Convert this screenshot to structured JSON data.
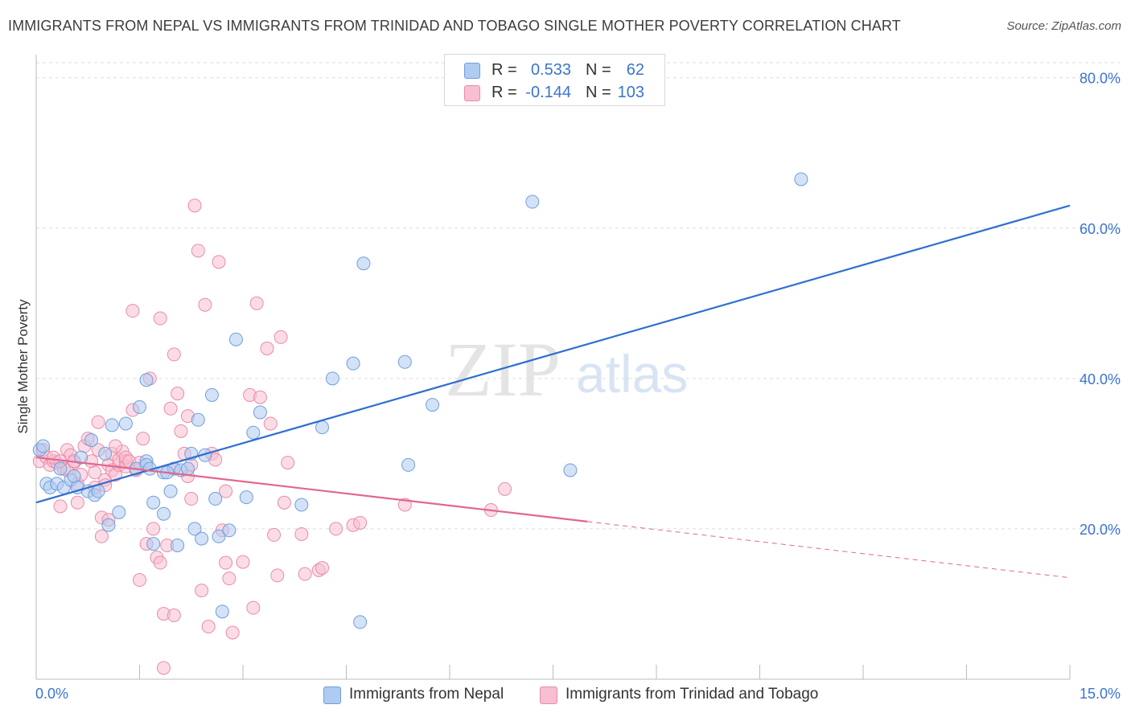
{
  "header": {
    "title": "IMMIGRANTS FROM NEPAL VS IMMIGRANTS FROM TRINIDAD AND TOBAGO SINGLE MOTHER POVERTY CORRELATION CHART",
    "source": "Source: ZipAtlas.com"
  },
  "watermark": {
    "zip": "ZIP",
    "atlas": "atlas"
  },
  "legend_top": {
    "rows": [
      {
        "r_label": "R =",
        "r_value": "0.533",
        "n_label": "N =",
        "n_value": "62"
      },
      {
        "r_label": "R =",
        "r_value": "-0.144",
        "n_label": "N =",
        "n_value": "103"
      }
    ]
  },
  "legend_bottom": {
    "items": [
      {
        "label": "Immigrants from Nepal"
      },
      {
        "label": "Immigrants from Trinidad and Tobago"
      }
    ]
  },
  "colors": {
    "nepal_fill": "#aecbf0",
    "nepal_stroke": "#6f9fdc",
    "nepal_line": "#2f6fd0",
    "tt_fill": "#f7bfd0",
    "tt_stroke": "#e98bab",
    "tt_line": "#e2668f",
    "tick_text": "#3a74d0",
    "grid": "#dddddd"
  },
  "chart_data": {
    "type": "scatter",
    "title": "IMMIGRANTS FROM NEPAL VS IMMIGRANTS FROM TRINIDAD AND TOBAGO SINGLE MOTHER POVERTY CORRELATION CHART",
    "xlabel": "",
    "ylabel": "Single Mother Poverty",
    "xlim": [
      0,
      15
    ],
    "ylim": [
      0,
      82
    ],
    "x_tick_labels": [
      "0.0%",
      "15.0%"
    ],
    "y_ticks": [
      20,
      40,
      60,
      80
    ],
    "y_tick_labels": [
      "20.0%",
      "40.0%",
      "60.0%",
      "80.0%"
    ],
    "grid": true,
    "legend_position": "top-center",
    "series": [
      {
        "name": "Immigrants from Nepal",
        "r": 0.533,
        "n": 62,
        "trend": {
          "x": [
            0,
            15
          ],
          "y": [
            23.5,
            63.0
          ],
          "dashed_from": null
        },
        "points": [
          [
            0.05,
            30.5
          ],
          [
            0.1,
            31.0
          ],
          [
            0.15,
            26.0
          ],
          [
            0.2,
            25.5
          ],
          [
            0.3,
            26.0
          ],
          [
            0.35,
            28.0
          ],
          [
            0.4,
            25.5
          ],
          [
            0.5,
            26.5
          ],
          [
            0.55,
            27.0
          ],
          [
            0.6,
            25.5
          ],
          [
            0.65,
            29.5
          ],
          [
            0.75,
            25.0
          ],
          [
            0.85,
            24.5
          ],
          [
            0.9,
            25.0
          ],
          [
            0.8,
            31.8
          ],
          [
            1.0,
            30.0
          ],
          [
            1.05,
            20.5
          ],
          [
            1.1,
            33.8
          ],
          [
            1.2,
            22.2
          ],
          [
            1.3,
            34.0
          ],
          [
            1.45,
            28.0
          ],
          [
            1.5,
            36.2
          ],
          [
            1.6,
            29.0
          ],
          [
            1.6,
            39.8
          ],
          [
            1.7,
            23.5
          ],
          [
            1.7,
            18.0
          ],
          [
            1.6,
            28.5
          ],
          [
            1.65,
            28.0
          ],
          [
            1.85,
            22.0
          ],
          [
            1.85,
            27.5
          ],
          [
            1.95,
            25.0
          ],
          [
            2.0,
            28.0
          ],
          [
            2.05,
            17.8
          ],
          [
            2.1,
            27.8
          ],
          [
            2.25,
            30.0
          ],
          [
            2.3,
            20.0
          ],
          [
            2.35,
            34.5
          ],
          [
            2.4,
            18.7
          ],
          [
            2.45,
            29.8
          ],
          [
            2.55,
            37.8
          ],
          [
            2.6,
            24.0
          ],
          [
            2.65,
            19.0
          ],
          [
            2.7,
            9.0
          ],
          [
            2.8,
            19.8
          ],
          [
            2.9,
            45.2
          ],
          [
            3.05,
            24.2
          ],
          [
            3.15,
            32.8
          ],
          [
            3.25,
            35.5
          ],
          [
            3.85,
            23.2
          ],
          [
            4.15,
            33.5
          ],
          [
            4.3,
            40.0
          ],
          [
            4.6,
            42.0
          ],
          [
            4.7,
            7.6
          ],
          [
            4.75,
            55.3
          ],
          [
            5.35,
            42.2
          ],
          [
            5.4,
            28.5
          ],
          [
            5.75,
            36.5
          ],
          [
            7.2,
            63.5
          ],
          [
            7.75,
            27.8
          ],
          [
            11.1,
            66.5
          ],
          [
            1.9,
            27.5
          ],
          [
            2.2,
            28.0
          ]
        ]
      },
      {
        "name": "Immigrants from Trinidad and Tobago",
        "r": -0.144,
        "n": 103,
        "trend": {
          "x": [
            0,
            15
          ],
          "y": [
            29.5,
            13.5
          ],
          "dashed_from": 8.0
        },
        "points": [
          [
            0.05,
            29.0
          ],
          [
            0.1,
            30.5
          ],
          [
            0.15,
            29.5
          ],
          [
            0.2,
            28.5
          ],
          [
            0.25,
            29.0
          ],
          [
            0.3,
            28.8
          ],
          [
            0.35,
            23.0
          ],
          [
            0.4,
            28.0
          ],
          [
            0.45,
            30.5
          ],
          [
            0.5,
            29.8
          ],
          [
            0.55,
            28.8
          ],
          [
            0.6,
            23.5
          ],
          [
            0.6,
            26.0
          ],
          [
            0.65,
            27.2
          ],
          [
            0.7,
            31.0
          ],
          [
            0.75,
            32.0
          ],
          [
            0.8,
            29.0
          ],
          [
            0.85,
            27.5
          ],
          [
            0.85,
            25.5
          ],
          [
            0.9,
            30.5
          ],
          [
            0.9,
            34.2
          ],
          [
            0.95,
            21.5
          ],
          [
            0.95,
            19.0
          ],
          [
            1.0,
            26.5
          ],
          [
            1.05,
            21.2
          ],
          [
            1.05,
            28.5
          ],
          [
            1.1,
            27.8
          ],
          [
            1.1,
            30.0
          ],
          [
            1.15,
            27.2
          ],
          [
            1.2,
            28.5
          ],
          [
            1.2,
            29.2
          ],
          [
            1.25,
            30.3
          ],
          [
            1.3,
            29.0
          ],
          [
            1.3,
            28.3
          ],
          [
            1.3,
            29.5
          ],
          [
            1.35,
            29.0
          ],
          [
            1.4,
            49.0
          ],
          [
            1.4,
            35.8
          ],
          [
            1.45,
            27.8
          ],
          [
            1.5,
            13.2
          ],
          [
            1.5,
            28.8
          ],
          [
            1.55,
            32.0
          ],
          [
            1.6,
            18.0
          ],
          [
            1.65,
            40.0
          ],
          [
            1.7,
            20.0
          ],
          [
            1.75,
            16.2
          ],
          [
            1.8,
            15.5
          ],
          [
            1.8,
            48.0
          ],
          [
            1.85,
            8.7
          ],
          [
            1.85,
            1.5
          ],
          [
            1.9,
            17.8
          ],
          [
            1.95,
            36.0
          ],
          [
            2.0,
            8.5
          ],
          [
            2.0,
            43.2
          ],
          [
            2.05,
            38.0
          ],
          [
            2.1,
            33.0
          ],
          [
            2.15,
            30.0
          ],
          [
            2.2,
            27.0
          ],
          [
            2.2,
            35.0
          ],
          [
            2.25,
            24.0
          ],
          [
            2.3,
            63.0
          ],
          [
            2.35,
            57.0
          ],
          [
            2.4,
            11.8
          ],
          [
            2.45,
            49.8
          ],
          [
            2.5,
            7.0
          ],
          [
            2.55,
            30.0
          ],
          [
            2.6,
            29.2
          ],
          [
            2.65,
            55.5
          ],
          [
            2.7,
            19.8
          ],
          [
            2.75,
            25.0
          ],
          [
            2.75,
            15.5
          ],
          [
            2.8,
            13.4
          ],
          [
            2.85,
            6.2
          ],
          [
            3.0,
            15.6
          ],
          [
            3.1,
            37.8
          ],
          [
            3.15,
            9.5
          ],
          [
            3.2,
            50.0
          ],
          [
            3.25,
            37.5
          ],
          [
            3.35,
            44.0
          ],
          [
            3.4,
            34.0
          ],
          [
            3.45,
            19.2
          ],
          [
            3.5,
            13.8
          ],
          [
            3.55,
            45.5
          ],
          [
            3.6,
            23.5
          ],
          [
            3.65,
            28.8
          ],
          [
            3.85,
            19.3
          ],
          [
            3.9,
            14.0
          ],
          [
            4.1,
            14.5
          ],
          [
            4.15,
            14.8
          ],
          [
            4.35,
            20.0
          ],
          [
            4.6,
            20.5
          ],
          [
            4.7,
            20.8
          ],
          [
            5.35,
            23.2
          ],
          [
            6.6,
            22.5
          ],
          [
            6.8,
            25.3
          ],
          [
            0.25,
            29.5
          ],
          [
            0.45,
            27.8
          ],
          [
            0.55,
            29.0
          ],
          [
            1.0,
            25.8
          ],
          [
            1.15,
            31.0
          ],
          [
            2.0,
            28.0
          ],
          [
            2.25,
            28.5
          ],
          [
            0.35,
            29.0
          ]
        ]
      }
    ]
  }
}
